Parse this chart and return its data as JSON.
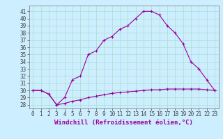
{
  "xlabel": "Windchill (Refroidissement éolien,°C)",
  "background_color": "#cceeff",
  "line_color": "#990099",
  "x_hours": [
    0,
    1,
    2,
    3,
    4,
    5,
    6,
    7,
    8,
    9,
    10,
    11,
    12,
    13,
    14,
    15,
    16,
    17,
    18,
    19,
    20,
    21,
    22,
    23
  ],
  "temp_values": [
    30,
    30,
    29.5,
    28,
    28.2,
    28.5,
    28.7,
    29.0,
    29.2,
    29.4,
    29.6,
    29.7,
    29.8,
    29.9,
    30.0,
    30.1,
    30.1,
    30.2,
    30.2,
    30.2,
    30.2,
    30.2,
    30.1,
    30.0
  ],
  "windchill_values": [
    30,
    30,
    29.5,
    28,
    29.0,
    31.5,
    32.0,
    35.0,
    35.5,
    37.0,
    37.5,
    38.5,
    39.0,
    40.0,
    41.0,
    41.0,
    40.5,
    39.0,
    38.0,
    36.5,
    34.0,
    33.0,
    31.5,
    30.0
  ],
  "ylim": [
    27.5,
    41.8
  ],
  "yticks": [
    28,
    29,
    30,
    31,
    32,
    33,
    34,
    35,
    36,
    37,
    38,
    39,
    40,
    41
  ],
  "xticks": [
    0,
    1,
    2,
    3,
    4,
    5,
    6,
    7,
    8,
    9,
    10,
    11,
    12,
    13,
    14,
    15,
    16,
    17,
    18,
    19,
    20,
    21,
    22,
    23
  ],
  "grid_color": "#aaddcc",
  "tick_fontsize": 5.5,
  "label_fontsize": 6.5
}
